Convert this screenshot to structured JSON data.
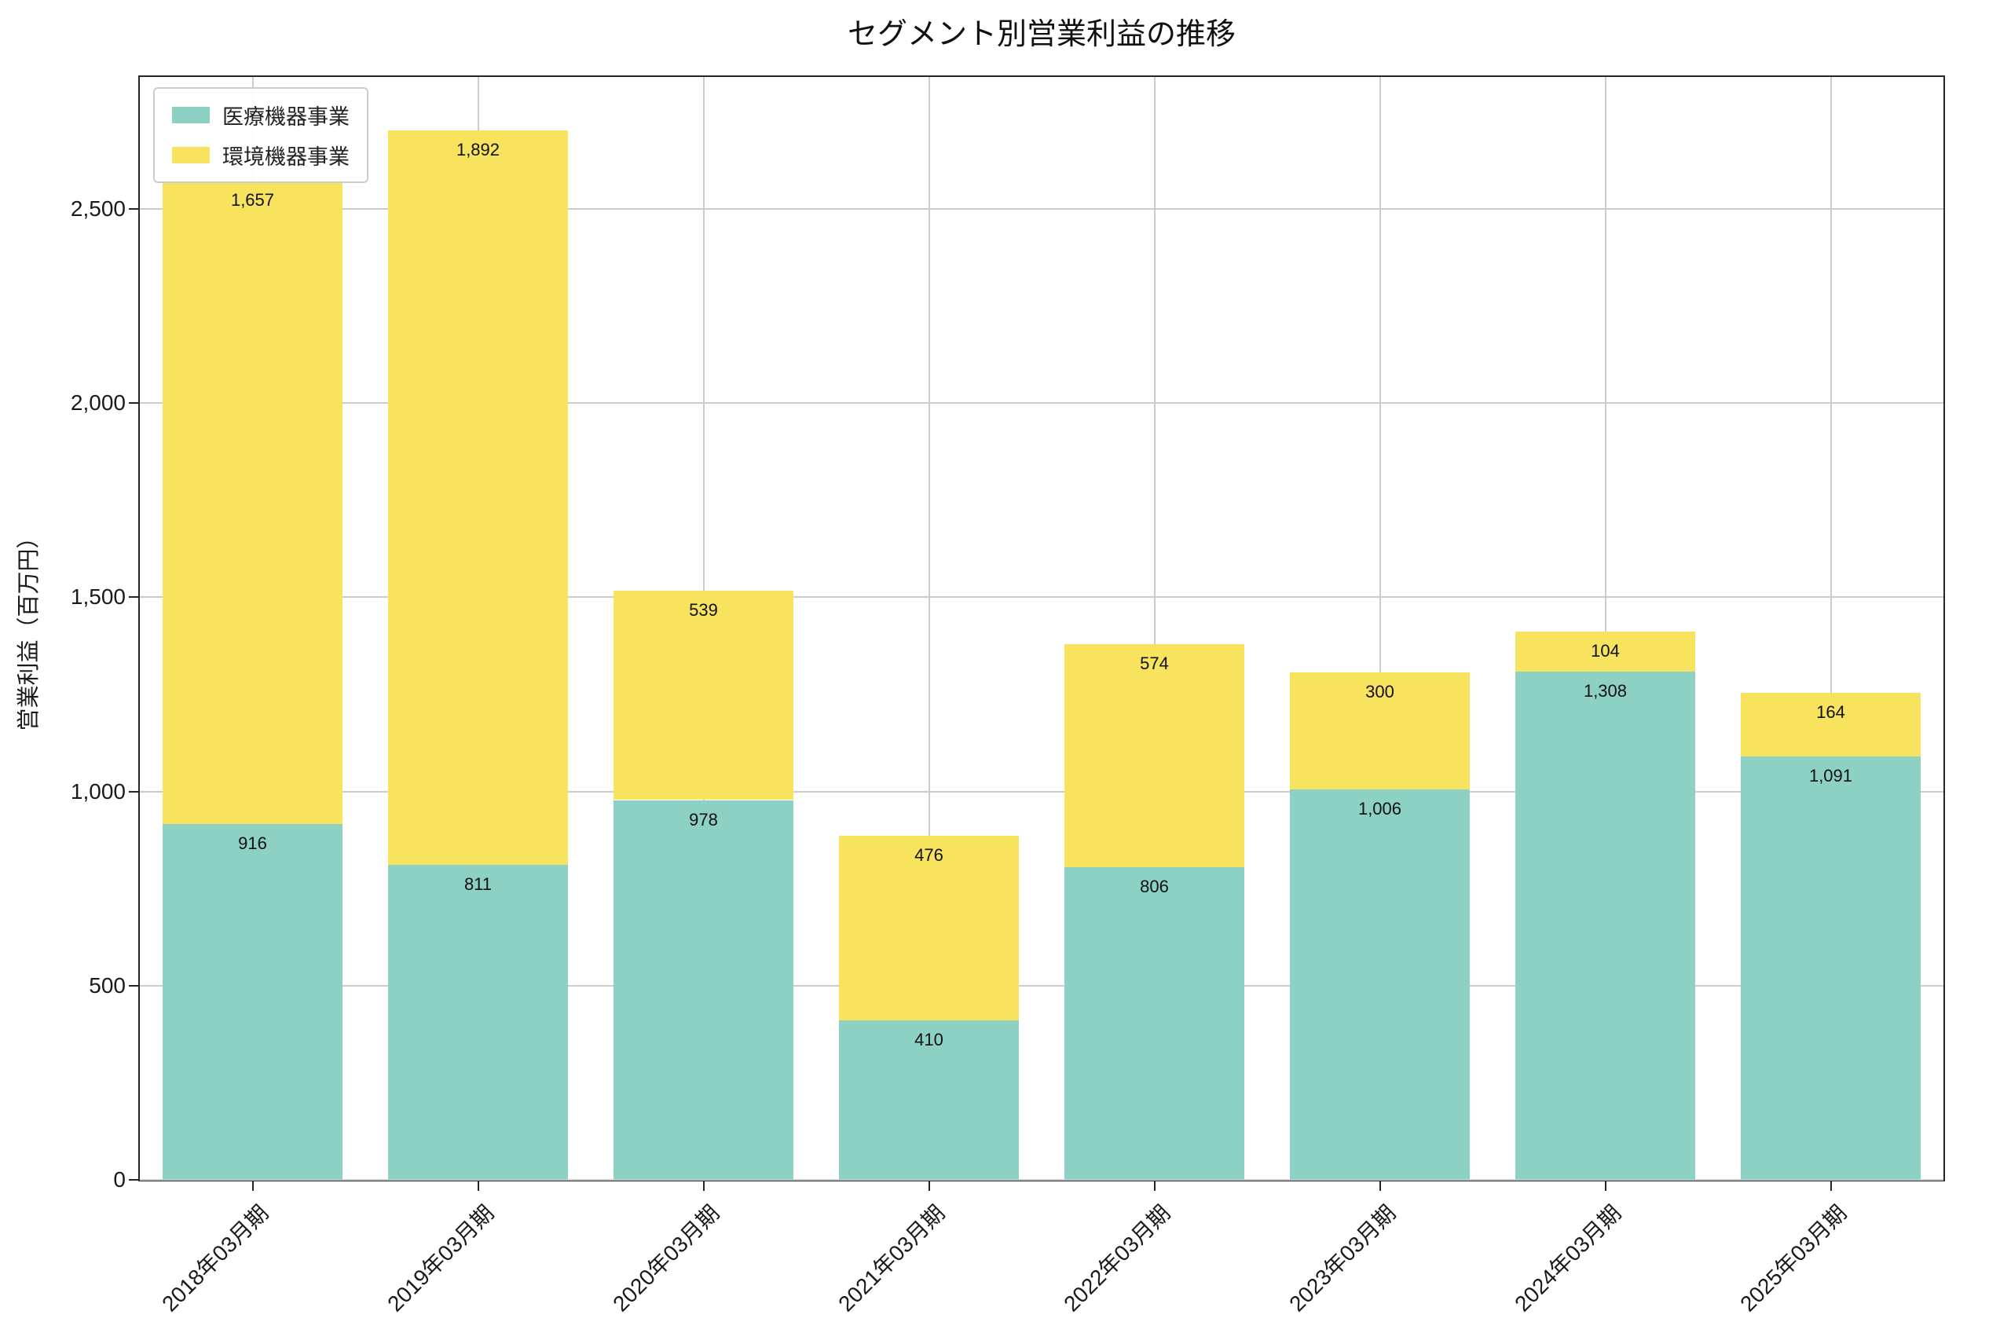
{
  "chart_data": {
    "type": "bar",
    "stacked": true,
    "title": "セグメント別営業利益の推移",
    "xlabel": "",
    "ylabel": "営業利益（百万円）",
    "categories": [
      "2018年03月期",
      "2019年03月期",
      "2020年03月期",
      "2021年03月期",
      "2022年03月期",
      "2023年03月期",
      "2024年03月期",
      "2025年03月期"
    ],
    "series": [
      {
        "name": "医療機器事業",
        "color": "#8CD1C3",
        "values": [
          916,
          811,
          978,
          410,
          806,
          1006,
          1308,
          1091
        ]
      },
      {
        "name": "環境機器事業",
        "color": "#F8E35E",
        "values": [
          1657,
          1892,
          539,
          476,
          574,
          300,
          104,
          164
        ]
      }
    ],
    "ylim": [
      0,
      2840
    ],
    "yticks": [
      0,
      500,
      1000,
      1500,
      2000,
      2500
    ],
    "grid": true,
    "legend_position": "upper left",
    "bar_value_labels": true
  },
  "colors": {
    "grid": "#cccccc",
    "axis": "#262626",
    "background": "#ffffff",
    "label_text": "#111111"
  }
}
